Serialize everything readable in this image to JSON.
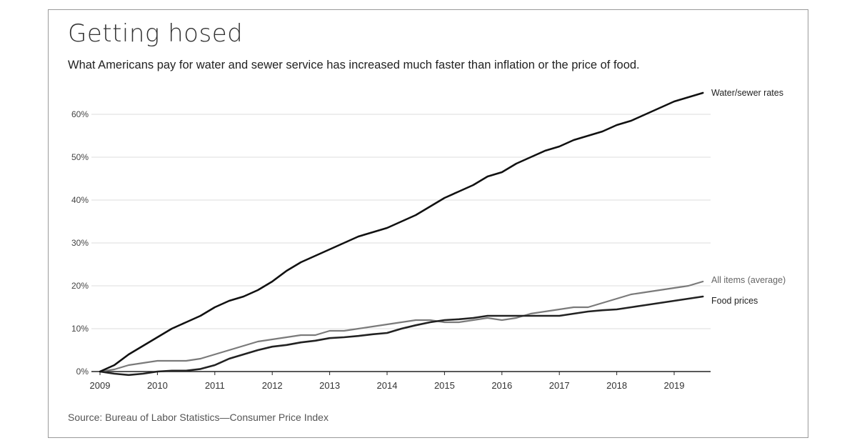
{
  "title": "Getting hosed",
  "subtitle": "What Americans pay for water and sewer service has increased much faster than inflation or the price of food.",
  "source": "Source: Bureau of Labor Statistics—Consumer Price Index",
  "colors": {
    "water": "#111111",
    "all_items": "#7a7a7a",
    "food": "#222222",
    "grid": "#dddddd",
    "axis": "#222222"
  },
  "chart_data": {
    "type": "line",
    "title": "Getting hosed",
    "subtitle": "What Americans pay for water and sewer service has increased much faster than inflation or the price of food.",
    "xlabel": "",
    "ylabel": "",
    "xlim": [
      2009.0,
      2019.6
    ],
    "ylim": [
      0,
      65
    ],
    "grid": true,
    "y_ticks": [
      0,
      10,
      20,
      30,
      40,
      50,
      60
    ],
    "y_tick_labels": [
      "0%",
      "10%",
      "20%",
      "30%",
      "40%",
      "50%",
      "60%"
    ],
    "x_ticks": [
      2009,
      2010,
      2011,
      2012,
      2013,
      2014,
      2015,
      2016,
      2017,
      2018,
      2019
    ],
    "x_tick_labels": [
      "2009",
      "2010",
      "2011",
      "2012",
      "2013",
      "2014",
      "2015",
      "2016",
      "2017",
      "2018",
      "2019"
    ],
    "legend": "direct labels at line ends (right)",
    "series": [
      {
        "name": "Water/sewer rates",
        "color": "#111111",
        "x": [
          2009.0,
          2009.25,
          2009.5,
          2009.75,
          2010.0,
          2010.25,
          2010.5,
          2010.75,
          2011.0,
          2011.25,
          2011.5,
          2011.75,
          2012.0,
          2012.25,
          2012.5,
          2012.75,
          2013.0,
          2013.25,
          2013.5,
          2013.75,
          2014.0,
          2014.25,
          2014.5,
          2014.75,
          2015.0,
          2015.25,
          2015.5,
          2015.75,
          2016.0,
          2016.25,
          2016.5,
          2016.75,
          2017.0,
          2017.25,
          2017.5,
          2017.75,
          2018.0,
          2018.25,
          2018.5,
          2018.75,
          2019.0,
          2019.25,
          2019.5
        ],
        "y": [
          0,
          1.5,
          4,
          6,
          8,
          10,
          11.5,
          13,
          15,
          16.5,
          17.5,
          19,
          21,
          23.5,
          25.5,
          27,
          28.5,
          30,
          31.5,
          32.5,
          33.5,
          35,
          36.5,
          38.5,
          40.5,
          42,
          43.5,
          45.5,
          46.5,
          48.5,
          50,
          51.5,
          52.5,
          54,
          55,
          56,
          57.5,
          58.5,
          60,
          61.5,
          63,
          64,
          65
        ]
      },
      {
        "name": "All items (average)",
        "color": "#7a7a7a",
        "x": [
          2009.0,
          2009.25,
          2009.5,
          2009.75,
          2010.0,
          2010.25,
          2010.5,
          2010.75,
          2011.0,
          2011.25,
          2011.5,
          2011.75,
          2012.0,
          2012.25,
          2012.5,
          2012.75,
          2013.0,
          2013.25,
          2013.5,
          2013.75,
          2014.0,
          2014.25,
          2014.5,
          2014.75,
          2015.0,
          2015.25,
          2015.5,
          2015.75,
          2016.0,
          2016.25,
          2016.5,
          2016.75,
          2017.0,
          2017.25,
          2017.5,
          2017.75,
          2018.0,
          2018.25,
          2018.5,
          2018.75,
          2019.0,
          2019.25,
          2019.5
        ],
        "y": [
          0,
          0.5,
          1.5,
          2,
          2.5,
          2.5,
          2.5,
          3,
          4,
          5,
          6,
          7,
          7.5,
          8,
          8.5,
          8.5,
          9.5,
          9.5,
          10,
          10.5,
          11,
          11.5,
          12,
          12,
          11.5,
          11.5,
          12,
          12.5,
          12,
          12.5,
          13.5,
          14,
          14.5,
          15,
          15,
          16,
          17,
          18,
          18.5,
          19,
          19.5,
          20,
          21
        ]
      },
      {
        "name": "Food prices",
        "color": "#222222",
        "x": [
          2009.0,
          2009.25,
          2009.5,
          2009.75,
          2010.0,
          2010.25,
          2010.5,
          2010.75,
          2011.0,
          2011.25,
          2011.5,
          2011.75,
          2012.0,
          2012.25,
          2012.5,
          2012.75,
          2013.0,
          2013.25,
          2013.5,
          2013.75,
          2014.0,
          2014.25,
          2014.5,
          2014.75,
          2015.0,
          2015.25,
          2015.5,
          2015.75,
          2016.0,
          2016.25,
          2016.5,
          2016.75,
          2017.0,
          2017.25,
          2017.5,
          2017.75,
          2018.0,
          2018.25,
          2018.5,
          2018.75,
          2019.0,
          2019.25,
          2019.5
        ],
        "y": [
          0,
          -0.5,
          -0.8,
          -0.5,
          0,
          0.2,
          0.2,
          0.6,
          1.5,
          3,
          4,
          5,
          5.8,
          6.2,
          6.8,
          7.2,
          7.8,
          8,
          8.3,
          8.7,
          9,
          10,
          10.8,
          11.5,
          12,
          12.2,
          12.5,
          13,
          13,
          13,
          13,
          13,
          13,
          13.5,
          14,
          14.3,
          14.5,
          15,
          15.5,
          16,
          16.5,
          17,
          17.5
        ]
      }
    ]
  }
}
